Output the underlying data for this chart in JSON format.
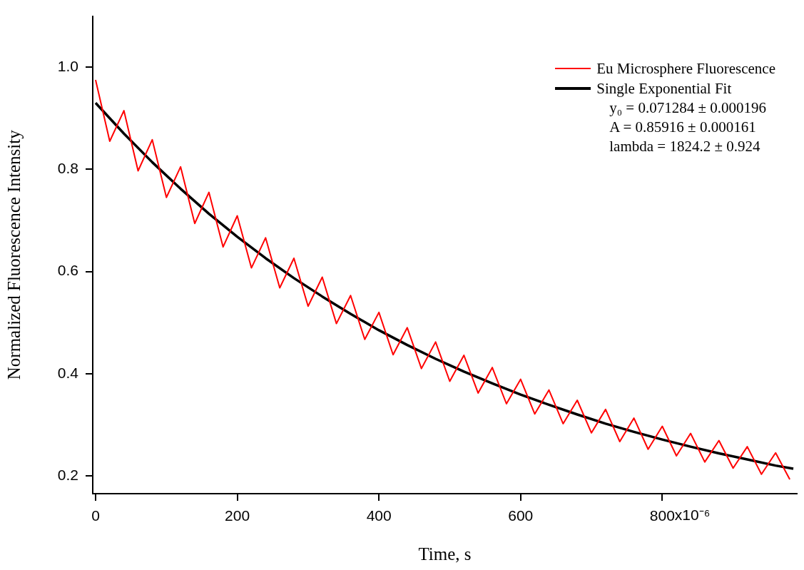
{
  "chart_data": {
    "type": "line",
    "xlabel": "Time, s",
    "ylabel": "Normalized Fluorescence Intensity",
    "xlim": [
      -4,
      990
    ],
    "ylim": [
      0.165,
      1.1
    ],
    "xticks": [
      0,
      200,
      400,
      600,
      800
    ],
    "yticks": [
      {
        "value": 0.2,
        "label": "0.2"
      },
      {
        "value": 0.4,
        "label": "0.4"
      },
      {
        "value": 0.6,
        "label": "0.6"
      },
      {
        "value": 0.8,
        "label": "0.8"
      },
      {
        "value": 1.0,
        "label": "1.0"
      }
    ],
    "grid": false,
    "legend": "top right",
    "marker": "none",
    "line_style": "solid",
    "annotations": [
      "x10⁻⁶",
      "y₀ = 0.071284 ± 0.000196",
      "A = 0.85916 ± 0.000161",
      "lambda = 1824.2 ± 0.924"
    ],
    "series": [
      {
        "name": "Eu Microsphere Fluorescence",
        "color": "#ff0000",
        "x": [
          0,
          20,
          40,
          60,
          80,
          100,
          120,
          140,
          160,
          180,
          200,
          220,
          240,
          260,
          280,
          300,
          320,
          340,
          360,
          380,
          400,
          420,
          440,
          460,
          480,
          500,
          520,
          540,
          560,
          580,
          600,
          620,
          640,
          660,
          680,
          700,
          720,
          740,
          760,
          780,
          800,
          820,
          840,
          860,
          880,
          900,
          920,
          940,
          960,
          980
        ],
        "values": [
          0.975,
          0.855,
          0.915,
          0.797,
          0.858,
          0.745,
          0.805,
          0.694,
          0.755,
          0.648,
          0.709,
          0.607,
          0.666,
          0.568,
          0.626,
          0.532,
          0.589,
          0.498,
          0.553,
          0.467,
          0.52,
          0.437,
          0.49,
          0.41,
          0.462,
          0.385,
          0.436,
          0.362,
          0.412,
          0.341,
          0.389,
          0.321,
          0.368,
          0.302,
          0.348,
          0.284,
          0.33,
          0.267,
          0.313,
          0.252,
          0.297,
          0.239,
          0.283,
          0.227,
          0.269,
          0.215,
          0.257,
          0.203,
          0.245,
          0.193
        ]
      },
      {
        "name": "Single Exponential Fit",
        "color": "#000000",
        "x": [
          0,
          40,
          80,
          120,
          160,
          200,
          240,
          280,
          320,
          360,
          400,
          440,
          480,
          520,
          560,
          600,
          640,
          680,
          720,
          760,
          800,
          840,
          880,
          920,
          960,
          985
        ],
        "values": [
          0.93,
          0.87,
          0.814,
          0.762,
          0.713,
          0.668,
          0.626,
          0.587,
          0.551,
          0.517,
          0.485,
          0.456,
          0.429,
          0.404,
          0.381,
          0.359,
          0.339,
          0.32,
          0.302,
          0.286,
          0.271,
          0.257,
          0.244,
          0.232,
          0.22,
          0.214
        ]
      }
    ]
  }
}
